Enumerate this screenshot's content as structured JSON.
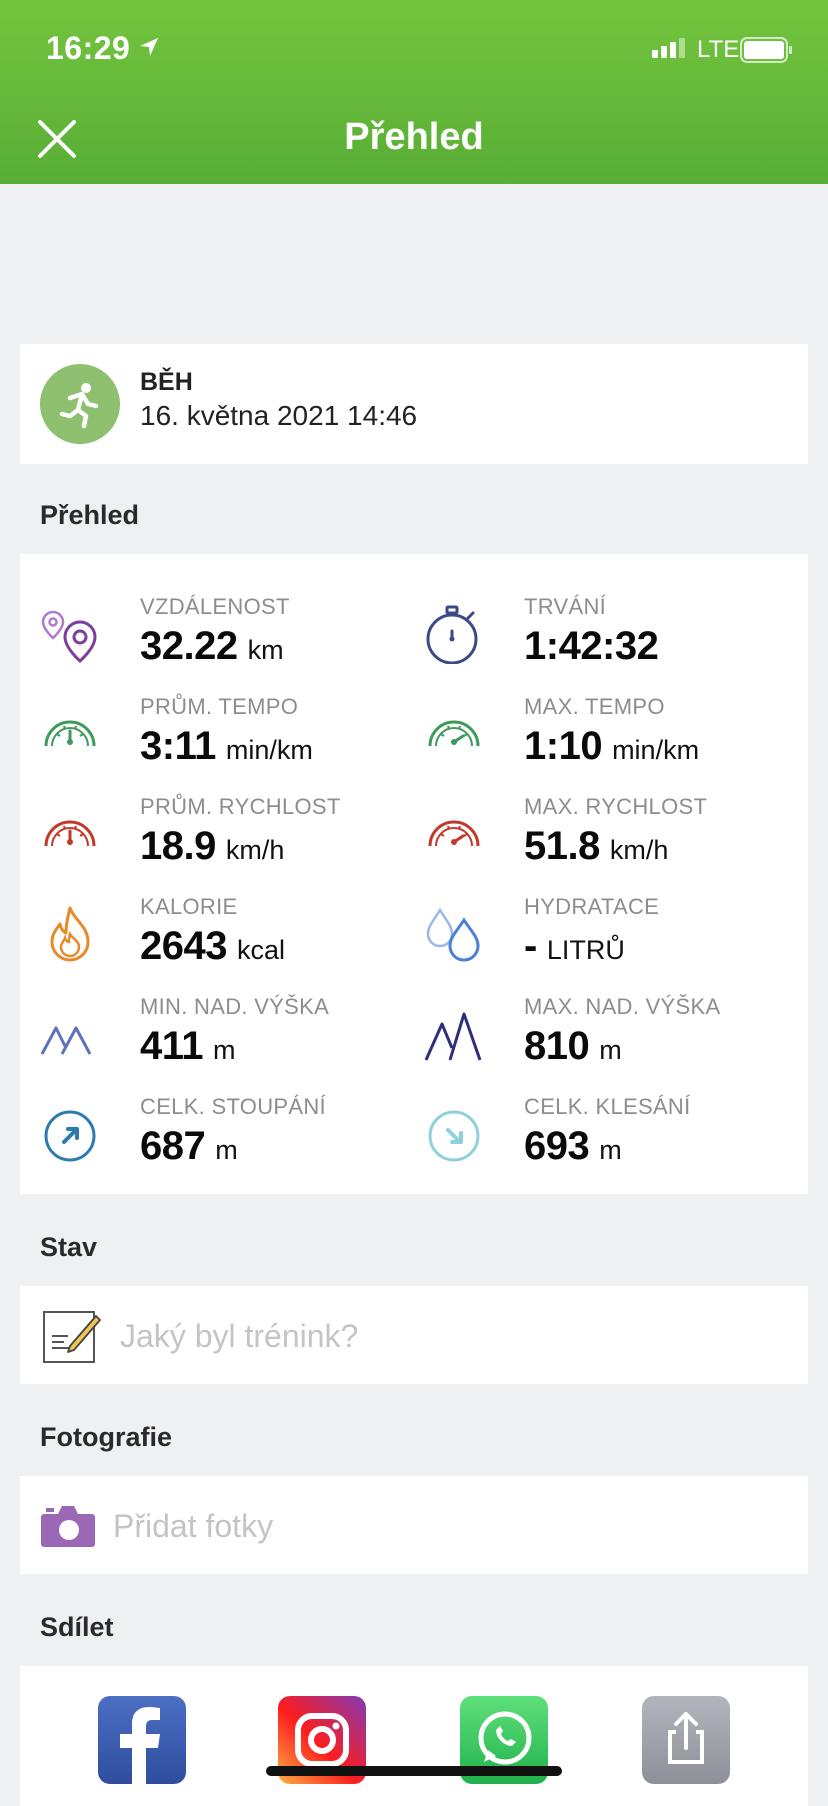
{
  "status_bar": {
    "time": "16:29",
    "network": "LTE"
  },
  "header": {
    "title": "Přehled"
  },
  "activity": {
    "type": "BĚH",
    "datetime": "16. května 2021 14:46"
  },
  "sections": {
    "overview": "Přehled",
    "status": "Stav",
    "photos": "Fotografie",
    "share": "Sdílet"
  },
  "stats": [
    {
      "label": "VZDÁLENOST",
      "value": "32.22",
      "unit": "km",
      "icon": "location-pins-icon"
    },
    {
      "label": "TRVÁNÍ",
      "value": "1:42:32",
      "unit": "",
      "icon": "stopwatch-icon"
    },
    {
      "label": "PRŮM. TEMPO",
      "value": "3:11",
      "unit": "min/km",
      "icon": "pace-gauge-icon"
    },
    {
      "label": "MAX. TEMPO",
      "value": "1:10",
      "unit": "min/km",
      "icon": "max-pace-gauge-icon"
    },
    {
      "label": "PRŮM. RYCHLOST",
      "value": "18.9",
      "unit": "km/h",
      "icon": "speed-gauge-icon"
    },
    {
      "label": "MAX. RYCHLOST",
      "value": "51.8",
      "unit": "km/h",
      "icon": "max-speed-gauge-icon"
    },
    {
      "label": "KALORIE",
      "value": "2643",
      "unit": "kcal",
      "icon": "flame-icon"
    },
    {
      "label": "HYDRATACE",
      "value": "-",
      "unit": "LITRŮ",
      "icon": "water-drops-icon"
    },
    {
      "label": "MIN. NAD. VÝŠKA",
      "value": "411",
      "unit": "m",
      "icon": "min-altitude-icon"
    },
    {
      "label": "MAX. NAD. VÝŠKA",
      "value": "810",
      "unit": "m",
      "icon": "max-altitude-icon"
    },
    {
      "label": "CELK. STOUPÁNÍ",
      "value": "687",
      "unit": "m",
      "icon": "ascent-icon"
    },
    {
      "label": "CELK. KLESÁNÍ",
      "value": "693",
      "unit": "m",
      "icon": "descent-icon"
    }
  ],
  "status_input": {
    "placeholder": "Jaký byl trénink?"
  },
  "photos": {
    "placeholder": "Přidat fotky"
  },
  "colors": {
    "header_green": "#6abb3b",
    "avatar_green": "#8ec06f",
    "purple": "#7b3f9c",
    "navy": "#3b4a86",
    "green": "#3e9a5c",
    "red": "#c0392b",
    "orange": "#e78a2b",
    "blue": "#4a80d6",
    "teal": "#2b7ab0",
    "light_teal": "#8fd0de"
  }
}
